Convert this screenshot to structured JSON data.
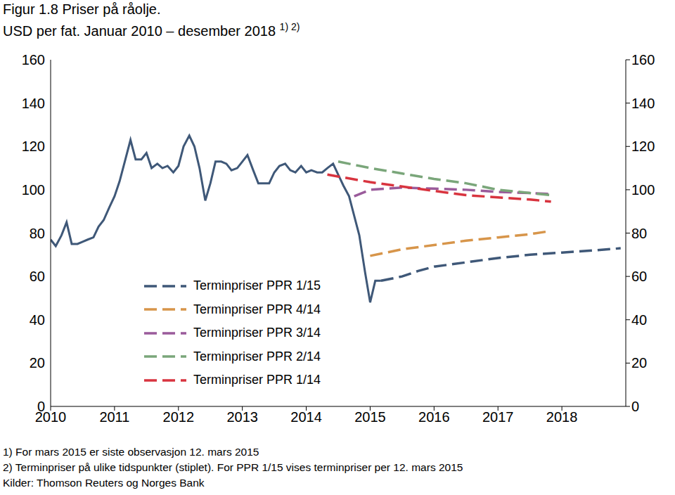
{
  "chart_data": {
    "type": "line",
    "title": "Figur 1.8 Priser på råolje.",
    "subtitle": "USD per fat. Januar 2010 – desember 2018",
    "subtitle_note": "1) 2)",
    "footnotes": [
      "1) For mars 2015 er siste observasjon 12. mars 2015",
      "2) Terminpriser på ulike tidspunkter (stiplet). For PPR 1/15 vises terminpriser per 12. mars 2015"
    ],
    "source": "Kilder: Thomson Reuters og Norges Bank",
    "xlim": [
      2010,
      2019
    ],
    "xticks": [
      2010,
      2011,
      2012,
      2013,
      2014,
      2015,
      2016,
      2017,
      2018
    ],
    "ylim": [
      0,
      160
    ],
    "yticks": [
      0,
      20,
      40,
      60,
      80,
      100,
      120,
      140,
      160
    ],
    "y2lim": [
      0,
      160
    ],
    "y2ticks": [
      0,
      20,
      40,
      60,
      80,
      100,
      120,
      140,
      160
    ],
    "legend": "lower left",
    "series": [
      {
        "color": "#3f5878",
        "line_style": "solid",
        "x": [
          2010,
          2010.08,
          2010.17,
          2010.25,
          2010.33,
          2010.42,
          2010.5,
          2010.58,
          2010.67,
          2010.75,
          2010.83,
          2010.92,
          2011,
          2011.08,
          2011.17,
          2011.25,
          2011.33,
          2011.42,
          2011.5,
          2011.58,
          2011.67,
          2011.75,
          2011.83,
          2011.92,
          2012,
          2012.08,
          2012.17,
          2012.25,
          2012.33,
          2012.42,
          2012.5,
          2012.58,
          2012.67,
          2012.75,
          2012.83,
          2012.92,
          2013,
          2013.08,
          2013.17,
          2013.25,
          2013.33,
          2013.42,
          2013.5,
          2013.58,
          2013.67,
          2013.75,
          2013.83,
          2013.92,
          2014,
          2014.08,
          2014.17,
          2014.25,
          2014.33,
          2014.42,
          2014.5,
          2014.58,
          2014.67,
          2014.75,
          2014.83,
          2014.92,
          2015,
          2015.08,
          2015.17
        ],
        "values": [
          77,
          74,
          79,
          85,
          75,
          75,
          76,
          77,
          78,
          83,
          86,
          92,
          97,
          104,
          114,
          123,
          114,
          114,
          117,
          110,
          112,
          110,
          111,
          108,
          111,
          120,
          125,
          120,
          110,
          95,
          103,
          113,
          113,
          112,
          109,
          110,
          113,
          116,
          109,
          103,
          103,
          103,
          108,
          111,
          112,
          109,
          108,
          111,
          108,
          109,
          108,
          108,
          110,
          112,
          107,
          102,
          97,
          88,
          79,
          62,
          48,
          58,
          58
        ]
      },
      {
        "name": "Terminpriser PPR 1/15",
        "color": "#3f5878",
        "line_style": "dashed",
        "x": [
          2015.17,
          2015.5,
          2015.75,
          2016,
          2016.5,
          2017,
          2017.5,
          2018,
          2018.5,
          2018.92
        ],
        "values": [
          58,
          60,
          62.5,
          64.5,
          66.5,
          68.5,
          70,
          71,
          72,
          73
        ]
      },
      {
        "name": "Terminpriser PPR 4/14",
        "color": "#d7954a",
        "line_style": "dashed",
        "x": [
          2015,
          2015.5,
          2016,
          2016.5,
          2017,
          2017.5,
          2017.83
        ],
        "values": [
          69.5,
          72.5,
          74.5,
          76.5,
          78,
          79.5,
          81
        ]
      },
      {
        "name": "Terminpriser PPR 3/14",
        "color": "#9a5b9b",
        "line_style": "dashed",
        "x": [
          2014.75,
          2015,
          2015.5,
          2016,
          2016.5,
          2017,
          2017.5,
          2017.83
        ],
        "values": [
          97,
          100,
          101,
          100.5,
          100,
          99,
          98.5,
          98
        ]
      },
      {
        "name": "Terminpriser PPR 2/14",
        "color": "#7aa67a",
        "line_style": "dashed",
        "x": [
          2014.5,
          2015,
          2015.5,
          2016,
          2016.5,
          2017,
          2017.5,
          2017.83
        ],
        "values": [
          113,
          110,
          107.5,
          105,
          103,
          100,
          98.5,
          97.5
        ]
      },
      {
        "name": "Terminpriser PPR 1/14",
        "color": "#d8343f",
        "line_style": "dashed",
        "x": [
          2014.33,
          2015,
          2015.5,
          2016,
          2016.5,
          2017,
          2017.5,
          2017.83
        ],
        "values": [
          107,
          103.5,
          101.5,
          99.5,
          97.5,
          96.5,
          95.5,
          94.5
        ]
      }
    ]
  }
}
